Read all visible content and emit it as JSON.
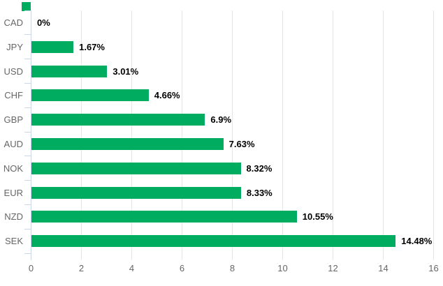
{
  "swatch": {
    "color": "#00AC5F"
  },
  "chart_data": {
    "type": "bar",
    "orientation": "horizontal",
    "title": "",
    "categories": [
      "CAD",
      "JPY",
      "USD",
      "CHF",
      "GBP",
      "AUD",
      "NOK",
      "EUR",
      "NZD",
      "SEK"
    ],
    "series": [
      {
        "name": "change-percent",
        "values": [
          0,
          1.67,
          3.01,
          4.66,
          6.9,
          7.63,
          8.32,
          8.33,
          10.55,
          14.48
        ]
      }
    ],
    "value_labels": [
      "0%",
      "1.67%",
      "3.01%",
      "4.66%",
      "6.9%",
      "7.63%",
      "8.32%",
      "8.33%",
      "10.55%",
      "14.48%"
    ],
    "xlabel": "",
    "ylabel": "",
    "xlim": [
      0,
      16
    ],
    "x_ticks": [
      "0",
      "2",
      "4",
      "6",
      "8",
      "10",
      "12",
      "14",
      "16"
    ],
    "grid": true,
    "legend_position": "none",
    "colors": {
      "bar": "#00AC5F",
      "grid_line": "#e6e6e6",
      "axis_line": "#ccd6eb",
      "tick_label": "#666666",
      "category_label": "#666666",
      "value_label": "#000000",
      "background": "#ffffff"
    }
  }
}
